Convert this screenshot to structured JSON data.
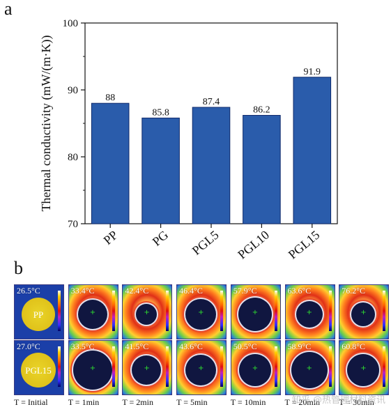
{
  "panel_a_label": "a",
  "panel_b_label": "b",
  "chart_data": {
    "type": "bar",
    "title": "",
    "xlabel": "",
    "ylabel": "Thermal conductivity (mW/(m·K))",
    "ylim": [
      70,
      100
    ],
    "yticks": [
      70,
      80,
      90,
      100
    ],
    "categories": [
      "PP",
      "PG",
      "PGL5",
      "PGL10",
      "PGL15"
    ],
    "values": [
      88,
      85.8,
      87.4,
      86.2,
      91.9
    ],
    "value_labels": [
      "88",
      "85.8",
      "87.4",
      "86.2",
      "91.9"
    ],
    "bar_color": "#2a5cab",
    "grid": false
  },
  "thermal": {
    "rows": [
      {
        "sample": "PP",
        "temps": [
          "26.5°C",
          "33.4°C",
          "42.4°C",
          "46.4°C",
          "57.9°C",
          "63.6°C",
          "76.2°C"
        ]
      },
      {
        "sample": "PGL15",
        "temps": [
          "27.0°C",
          "33.5°C",
          "41.5°C",
          "43.6°C",
          "50.5°C",
          "58.9°C",
          "60.8°C"
        ]
      }
    ],
    "times": [
      "T = Initial",
      "T = 1min",
      "T = 2min",
      "T = 5min",
      "T = 10min",
      "T = 20min",
      "T = 30min"
    ]
  },
  "watermark": "知乎 @热管理材料资讯"
}
